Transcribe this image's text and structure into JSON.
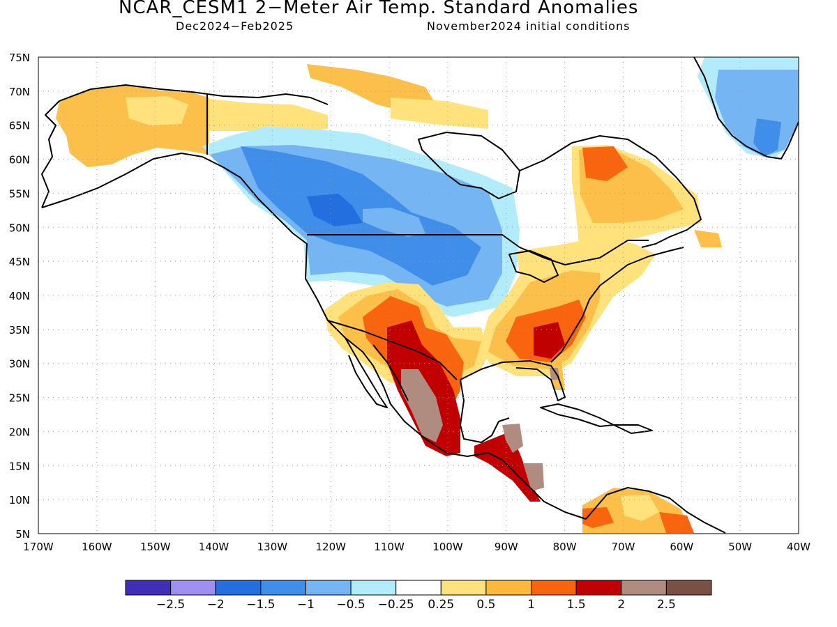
{
  "title": "NCAR_CESM1 2−Meter Air Temp. Standard Anomalies",
  "subtitle_left": "Dec2024−Feb2025",
  "subtitle_right": "November2024 initial conditions",
  "map": {
    "lon_range": [
      -170,
      -40
    ],
    "lat_range": [
      5,
      75
    ],
    "x_ticks": [
      "170W",
      "160W",
      "150W",
      "140W",
      "130W",
      "120W",
      "110W",
      "100W",
      "90W",
      "80W",
      "70W",
      "60W",
      "50W",
      "40W"
    ],
    "y_ticks": [
      "75N",
      "70N",
      "65N",
      "60N",
      "55N",
      "50N",
      "45N",
      "40N",
      "35N",
      "30N",
      "25N",
      "20N",
      "15N",
      "10N",
      "5N"
    ],
    "grid": "dotted",
    "background_color": "#ffffff"
  },
  "colorbar": {
    "colors": [
      "#3f2fb8",
      "#9f8ff2",
      "#236fdf",
      "#3f8fea",
      "#76b5f3",
      "#b2ecfa",
      "#ffffff",
      "#ffe27c",
      "#fcb93a",
      "#f9640f",
      "#c10000",
      "#b08b80",
      "#7a5045"
    ],
    "labels": [
      "−2.5",
      "−2",
      "−1.5",
      "−1",
      "−0.5",
      "−0.25",
      "0.25",
      "0.5",
      "1",
      "1.5",
      "2",
      "2.5"
    ]
  }
}
